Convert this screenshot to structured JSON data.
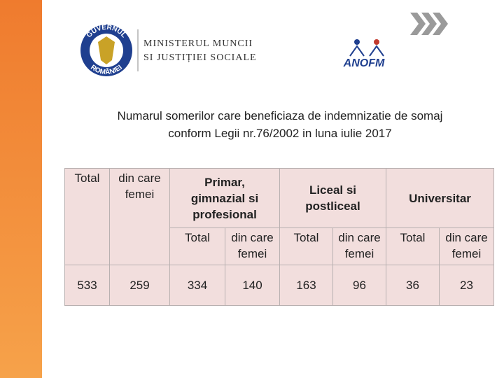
{
  "header": {
    "emblem_top": "GUVERNUL",
    "emblem_bottom": "ROMÂNIEI",
    "ministry_lines": [
      "MINISTERUL MUNCII",
      "SI JUSTIȚIEI SOCIALE"
    ],
    "agency": "ANOFM"
  },
  "title_lines": [
    "Numarul somerilor care beneficiaza de indemnizatie de somaj",
    "conform Legii nr.76/2002 in luna iulie 2017"
  ],
  "table": {
    "cols": [
      "Total",
      "din care femei"
    ],
    "groups": [
      {
        "label": "Primar, gimnazial si profesional",
        "subs": [
          "Total",
          "din care femei"
        ]
      },
      {
        "label": "Liceal si postliceal",
        "subs": [
          "Total",
          "din care femei"
        ]
      },
      {
        "label": "Universitar",
        "subs": [
          "Total",
          "din care femei"
        ]
      }
    ],
    "rows": [
      [
        533,
        259,
        334,
        140,
        163,
        96,
        36,
        23
      ]
    ]
  }
}
